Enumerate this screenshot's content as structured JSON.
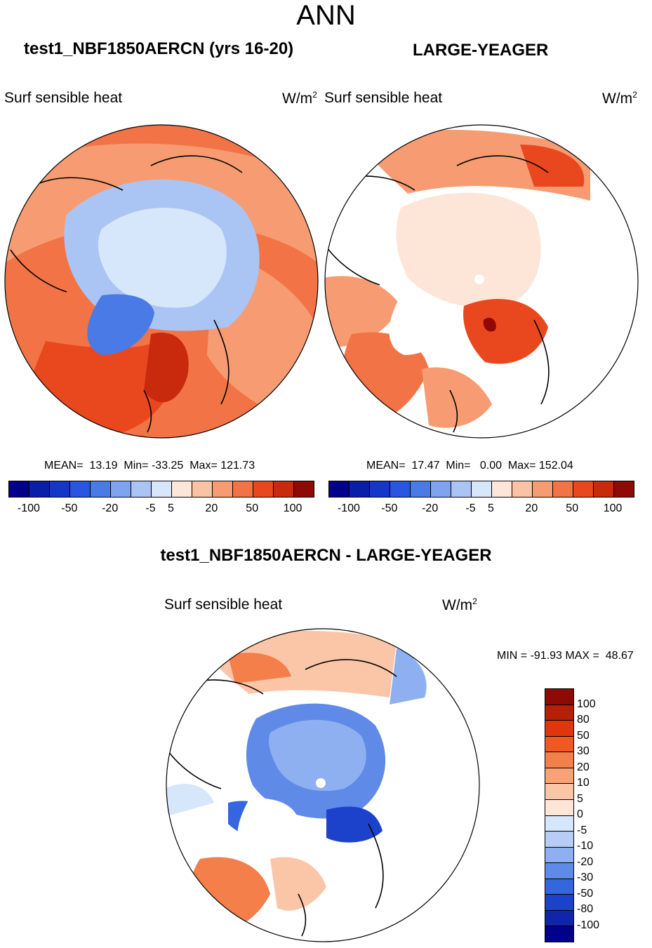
{
  "title": "ANN",
  "panels": [
    {
      "case_title": "test1_NBF1850AERCN (yrs 16-20)",
      "variable": "Surf sensible heat",
      "units_base": "W/m",
      "units_exp": "2",
      "stats": "MEAN=  13.19  Min= -33.25  Max= 121.73"
    },
    {
      "case_title": "LARGE-YEAGER",
      "variable": "Surf sensible heat",
      "units_base": "W/m",
      "units_exp": "2",
      "stats": "MEAN=  17.47  Min=   0.00  Max= 152.04"
    }
  ],
  "diff_panel": {
    "case_title": "test1_NBF1850AERCN - LARGE-YEAGER",
    "variable": "Surf sensible heat",
    "units_base": "W/m",
    "units_exp": "2",
    "minmax": "MIN = -91.93 MAX =  48.67"
  },
  "colorbar_horizontal": {
    "colors": [
      "#00008a",
      "#0a1fa8",
      "#1537c8",
      "#2a55e0",
      "#4a7ae6",
      "#7fa3ee",
      "#aac4f4",
      "#d6e6fb",
      "#fde6d8",
      "#fbc3a5",
      "#f79c72",
      "#f27446",
      "#e9481f",
      "#c92a0d",
      "#8f0a04"
    ],
    "tick_labels": [
      "-100",
      "-50",
      "-20",
      "-5",
      "5",
      "20",
      "50",
      "100"
    ]
  },
  "colorbar_vertical": {
    "colors": [
      "#8f0a04",
      "#b52008",
      "#e0360e",
      "#f05a22",
      "#f47f4a",
      "#f8a276",
      "#fbc6a8",
      "#fde6d8",
      "#d6e6fb",
      "#b7cdf6",
      "#8eb0f0",
      "#5f8ae8",
      "#3566e0",
      "#1c42cc",
      "#0f26aa",
      "#00008a"
    ],
    "tick_labels": [
      "100",
      "80",
      "50",
      "30",
      "20",
      "10",
      "5",
      "0",
      "-5",
      "-10",
      "-20",
      "-30",
      "-50",
      "-80",
      "-100"
    ]
  },
  "map_colors": {
    "ocean_warm": "#f27446",
    "ocean_light": "#f79c72",
    "pale_pink": "#fbc3a5",
    "deep_red": "#c92a0d",
    "ice_light": "#d6e6fb",
    "ice_mid": "#aac4f4",
    "ice_blue": "#4a7ae6",
    "diff_blue": "#5f8ae8",
    "diff_dark": "#1c42cc",
    "land": "#ffffff"
  }
}
